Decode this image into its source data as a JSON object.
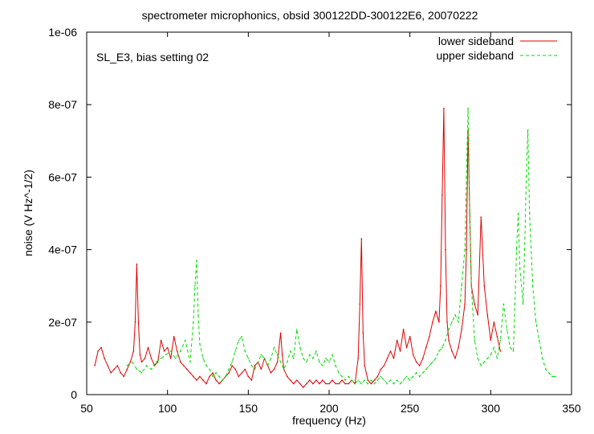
{
  "chart_data": {
    "type": "line",
    "title": "spectrometer microphonics, obsid 300122DD-300122E6, 20070222",
    "annotation": "SL_E3, bias setting 02",
    "xlabel": "frequency (Hz)",
    "ylabel": "noise (V Hz^-1/2)",
    "xlim": [
      50,
      350
    ],
    "ylim": [
      0,
      1e-06
    ],
    "x_ticks": [
      50,
      100,
      150,
      200,
      250,
      300,
      350
    ],
    "x_tick_labels": [
      "50",
      "100",
      "150",
      "200",
      "250",
      "300",
      "350"
    ],
    "y_ticks": [
      0,
      2e-07,
      4e-07,
      6e-07,
      8e-07,
      1e-06
    ],
    "y_tick_labels": [
      "0",
      "2e-07",
      "4e-07",
      "6e-07",
      "8e-07",
      "1e-06"
    ],
    "grid": false,
    "legend_position": "top-right",
    "series": [
      {
        "name": "lower sideband",
        "color": "#e00000",
        "dash": "solid",
        "x": [
          55,
          57,
          59,
          61,
          63,
          65,
          67,
          69,
          71,
          73,
          75,
          77,
          79,
          80,
          81,
          82,
          83,
          84,
          86,
          88,
          90,
          92,
          94,
          96,
          98,
          100,
          102,
          104,
          106,
          108,
          110,
          112,
          114,
          116,
          118,
          120,
          122,
          124,
          126,
          128,
          130,
          132,
          134,
          136,
          138,
          140,
          142,
          144,
          146,
          148,
          150,
          152,
          154,
          156,
          158,
          160,
          162,
          164,
          166,
          168,
          170,
          171,
          172,
          174,
          176,
          178,
          180,
          182,
          184,
          186,
          188,
          190,
          192,
          194,
          196,
          198,
          200,
          202,
          204,
          206,
          208,
          210,
          212,
          214,
          216,
          218,
          219,
          220,
          221,
          222,
          224,
          226,
          228,
          230,
          232,
          234,
          236,
          238,
          240,
          242,
          244,
          246,
          248,
          250,
          252,
          254,
          256,
          258,
          260,
          262,
          264,
          266,
          268,
          269,
          270,
          271,
          272,
          273,
          274,
          276,
          278,
          280,
          282,
          284,
          285,
          286,
          287,
          288,
          290,
          292,
          294,
          296,
          298,
          300,
          302,
          304,
          306
        ],
        "values": [
          8e-08,
          1.2e-07,
          1.3e-07,
          1e-07,
          8e-08,
          6e-08,
          7e-08,
          8e-08,
          6e-08,
          5e-08,
          7e-08,
          9e-08,
          1.2e-07,
          2e-07,
          3.6e-07,
          2e-07,
          1.1e-07,
          9e-08,
          1e-07,
          1.3e-07,
          1e-07,
          8e-08,
          9e-08,
          1.5e-07,
          1.2e-07,
          1.3e-07,
          1e-07,
          1.6e-07,
          1.2e-07,
          9e-08,
          8e-08,
          7e-08,
          6e-08,
          5e-08,
          4e-08,
          5e-08,
          4e-08,
          3e-08,
          5e-08,
          6e-08,
          4e-08,
          3e-08,
          4e-08,
          5e-08,
          6e-08,
          8e-08,
          7e-08,
          5e-08,
          6e-08,
          7e-08,
          5e-08,
          4e-08,
          8e-08,
          9e-08,
          7e-08,
          1e-07,
          8e-08,
          6e-08,
          7e-08,
          9e-08,
          1.7e-07,
          1.1e-07,
          7e-08,
          5e-08,
          4e-08,
          3e-08,
          4e-08,
          3e-08,
          2e-08,
          3e-08,
          4e-08,
          3e-08,
          4e-08,
          3e-08,
          4e-08,
          3e-08,
          3e-08,
          4e-08,
          3e-08,
          3e-08,
          4e-08,
          3e-08,
          3e-08,
          4e-08,
          3e-08,
          1e-07,
          2.5e-07,
          4.3e-07,
          1.7e-07,
          8e-08,
          4e-08,
          3e-08,
          4e-08,
          5e-08,
          7e-08,
          8e-08,
          1e-07,
          1.2e-07,
          1e-07,
          1.5e-07,
          1.2e-07,
          1.8e-07,
          1.3e-07,
          1.6e-07,
          1.1e-07,
          9e-08,
          8e-08,
          1e-07,
          1.3e-07,
          1.6e-07,
          2e-07,
          2.3e-07,
          2e-07,
          3e-07,
          5.5e-07,
          7.9e-07,
          4e-07,
          2e-07,
          1.5e-07,
          1.2e-07,
          1e-07,
          1.3e-07,
          1.8e-07,
          2.5e-07,
          4e-07,
          7.3e-07,
          5e-07,
          3e-07,
          2.5e-07,
          2.2e-07,
          4.9e-07,
          3e-07,
          2.2e-07,
          1.5e-07,
          2e-07,
          1.6e-07,
          1.2e-07
        ]
      },
      {
        "name": "upper sideband",
        "color": "#00dd00",
        "dash": "dashed",
        "x": [
          75,
          78,
          81,
          84,
          87,
          90,
          93,
          96,
          99,
          102,
          105,
          108,
          111,
          114,
          116,
          117,
          118,
          119,
          120,
          122,
          124,
          126,
          128,
          130,
          132,
          134,
          136,
          138,
          140,
          142,
          144,
          146,
          148,
          150,
          152,
          154,
          156,
          158,
          160,
          162,
          164,
          166,
          168,
          170,
          172,
          174,
          176,
          178,
          180,
          182,
          184,
          186,
          188,
          190,
          192,
          194,
          196,
          198,
          200,
          202,
          204,
          206,
          208,
          210,
          212,
          214,
          216,
          218,
          220,
          222,
          224,
          226,
          228,
          230,
          232,
          234,
          236,
          238,
          240,
          242,
          244,
          246,
          248,
          250,
          252,
          254,
          256,
          258,
          260,
          262,
          264,
          266,
          268,
          270,
          272,
          274,
          276,
          278,
          280,
          282,
          284,
          285,
          286,
          287,
          288,
          290,
          292,
          294,
          296,
          298,
          300,
          302,
          304,
          306,
          308,
          310,
          312,
          314,
          315,
          316,
          317,
          318,
          320,
          321,
          322,
          323,
          324,
          326,
          328,
          330,
          332,
          334,
          336,
          338,
          340
        ],
        "values": [
          8e-08,
          9e-08,
          7e-08,
          6e-08,
          8e-08,
          7e-08,
          9e-08,
          1e-07,
          1.1e-07,
          1.2e-07,
          1e-07,
          1.2e-07,
          1.5e-07,
          9e-08,
          2e-07,
          3e-07,
          3.7e-07,
          2.2e-07,
          1.4e-07,
          1e-07,
          8e-08,
          7e-08,
          5e-08,
          6e-08,
          5e-08,
          4e-08,
          5e-08,
          7e-08,
          9e-08,
          1.2e-07,
          1.5e-07,
          1.6e-07,
          1.2e-07,
          1e-07,
          8e-08,
          7e-08,
          9e-08,
          1.1e-07,
          1e-07,
          8e-08,
          1e-07,
          1.3e-07,
          1.1e-07,
          9e-08,
          7e-08,
          9e-08,
          1.2e-07,
          1e-07,
          1.8e-07,
          1.3e-07,
          1e-07,
          9e-08,
          1.1e-07,
          1e-07,
          1.2e-07,
          9e-08,
          8e-08,
          1e-07,
          9e-08,
          1.1e-07,
          8e-08,
          6e-08,
          5e-08,
          4e-08,
          5e-08,
          4e-08,
          3e-08,
          4e-08,
          3e-08,
          4e-08,
          3e-08,
          4e-08,
          3e-08,
          4e-08,
          5e-08,
          4e-08,
          3e-08,
          4e-08,
          3e-08,
          4e-08,
          3e-08,
          4e-08,
          5e-08,
          4e-08,
          5e-08,
          6e-08,
          5e-08,
          6e-08,
          7e-08,
          8e-08,
          9e-08,
          1e-07,
          1.2e-07,
          1.3e-07,
          1.5e-07,
          1.8e-07,
          2e-07,
          2.2e-07,
          2e-07,
          3e-07,
          4e-07,
          6e-07,
          7.9e-07,
          5e-07,
          3e-07,
          1.5e-07,
          1e-07,
          8e-08,
          9e-08,
          1e-07,
          1.1e-07,
          1.3e-07,
          1e-07,
          1.5e-07,
          2.5e-07,
          1.8e-07,
          1.3e-07,
          1.2e-07,
          2.5e-07,
          4e-07,
          5e-07,
          3.5e-07,
          2.5e-07,
          4e-07,
          6e-07,
          7.3e-07,
          5e-07,
          3e-07,
          2e-07,
          1.5e-07,
          1e-07,
          7e-08,
          6e-08,
          5e-08,
          5e-08
        ]
      }
    ]
  }
}
